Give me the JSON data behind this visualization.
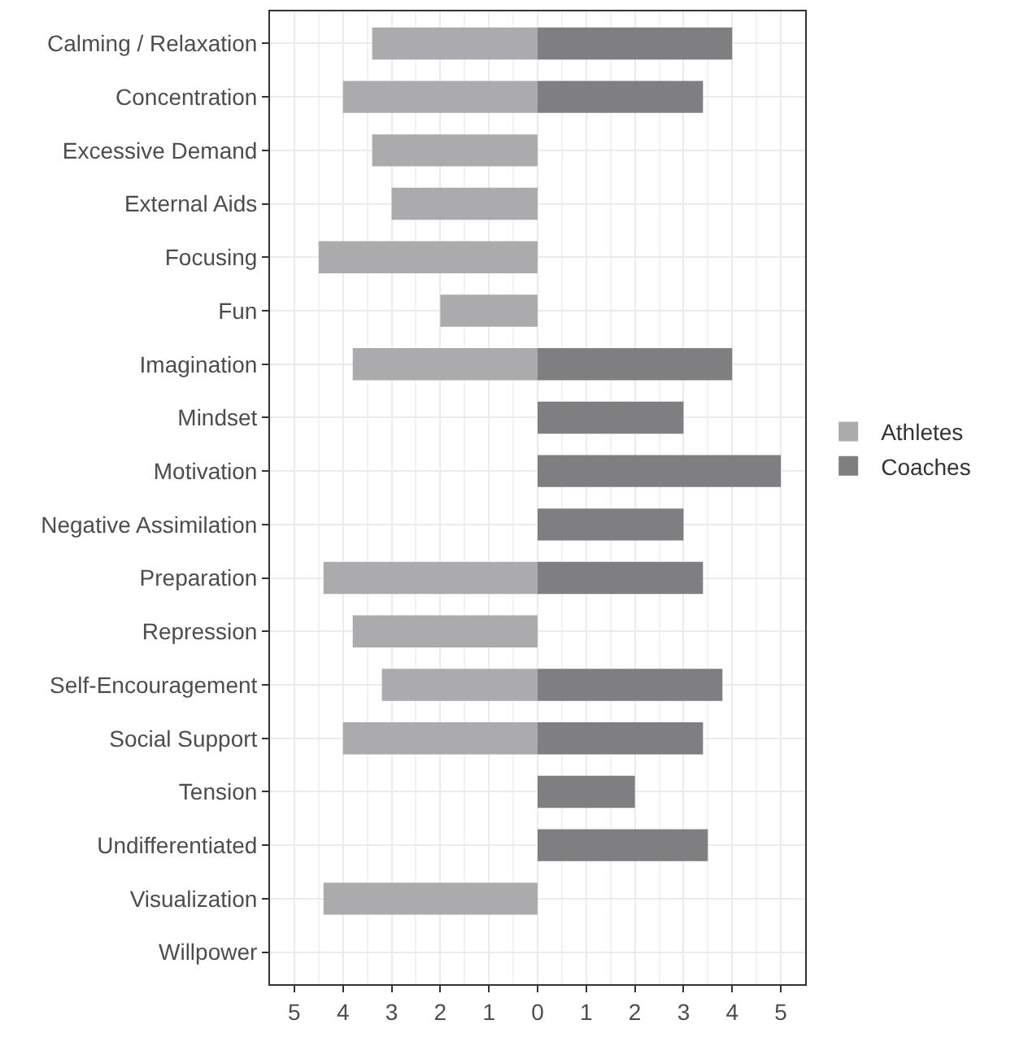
{
  "chart_data": {
    "type": "bar",
    "orientation": "horizontal",
    "stacked": true,
    "categories": [
      "Calming / Relaxation",
      "Concentration",
      "Excessive Demand",
      "External Aids",
      "Focusing",
      "Fun",
      "Imagination",
      "Mindset",
      "Motivation",
      "Negative Assimilation",
      "Preparation",
      "Repression",
      "Self-Encouragement",
      "Social Support",
      "Tension",
      "Undifferentiated",
      "Visualization",
      "Willpower"
    ],
    "series": [
      {
        "name": "Athletes",
        "color": "#ababad",
        "values": [
          -3.4,
          -4.0,
          -3.4,
          -3.0,
          -4.5,
          -2.0,
          -3.8,
          null,
          null,
          null,
          -4.4,
          -3.8,
          -3.2,
          -4.0,
          null,
          null,
          -4.4,
          null
        ]
      },
      {
        "name": "Coaches",
        "color": "#7f7f82",
        "values": [
          4.0,
          3.4,
          null,
          null,
          null,
          null,
          4.0,
          3.0,
          5.0,
          3.0,
          3.4,
          null,
          3.8,
          3.4,
          2.0,
          3.5,
          null,
          null
        ]
      }
    ],
    "xlim": [
      -5.5,
      5.5
    ],
    "xticks": [
      {
        "value": -5,
        "label": "5"
      },
      {
        "value": -4,
        "label": "4"
      },
      {
        "value": -3,
        "label": "3"
      },
      {
        "value": -2,
        "label": "2"
      },
      {
        "value": -1,
        "label": "1"
      },
      0,
      1,
      2,
      3,
      4,
      5
    ],
    "grid": true,
    "legend": "right"
  }
}
